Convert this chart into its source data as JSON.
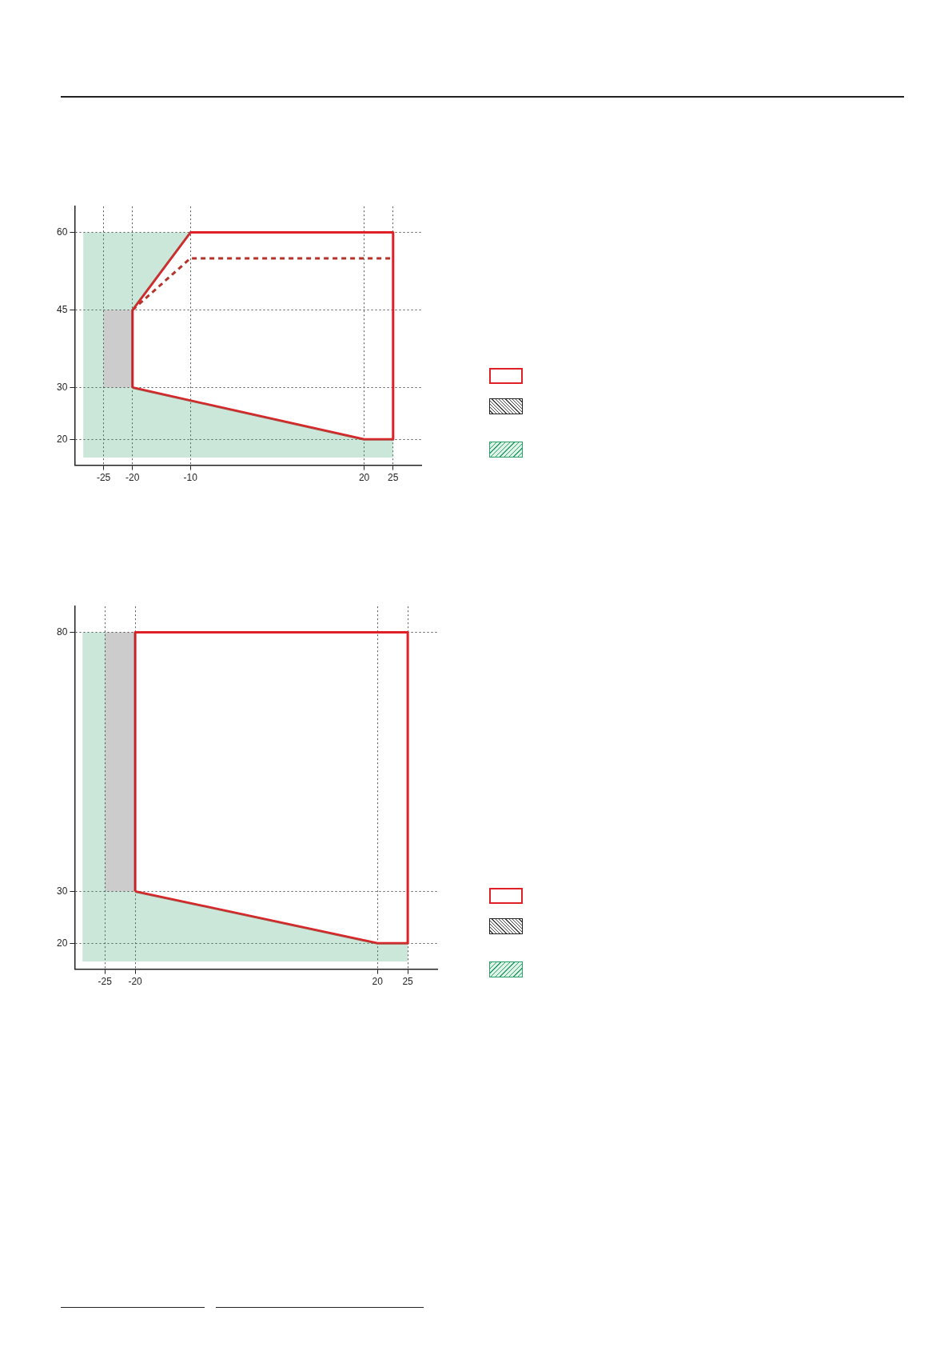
{
  "chart_data": [
    {
      "type": "line",
      "xlim": [
        -30,
        30
      ],
      "ylim": [
        15,
        65
      ],
      "xticks": [
        -25,
        -20,
        -10,
        20,
        25
      ],
      "yticks": [
        20,
        30,
        45,
        60
      ],
      "grid": true,
      "marker": "none",
      "series": [
        {
          "type": "area",
          "color": "#2e9e6a",
          "x": [
            -28.5,
            -28.5,
            -10,
            -20,
            -25,
            -25,
            -20,
            20,
            25,
            25,
            -28.5
          ],
          "values": [
            16.5,
            60,
            60,
            45,
            45,
            30,
            30,
            20,
            20,
            16.5,
            16.5
          ]
        },
        {
          "type": "area",
          "color": "#333333",
          "x": [
            -25,
            -25,
            -20,
            -20,
            -25
          ],
          "values": [
            30,
            45,
            45,
            30,
            30
          ]
        },
        {
          "type": "line",
          "color": "#e02027",
          "x": [
            -20,
            -20,
            -10,
            25,
            25
          ],
          "values": [
            30,
            45,
            60,
            60,
            20
          ]
        },
        {
          "type": "line",
          "color": "#e02027",
          "x": [
            -20,
            20,
            25
          ],
          "values": [
            30,
            20,
            20
          ]
        },
        {
          "type": "line",
          "color": "#b5332b",
          "line_style": "dashed",
          "x": [
            -20,
            -10,
            25
          ],
          "values": [
            45,
            55,
            55
          ]
        }
      ]
    },
    {
      "type": "line",
      "xlim": [
        -30,
        30
      ],
      "ylim": [
        15,
        85
      ],
      "xticks": [
        -25,
        -20,
        20,
        25
      ],
      "yticks": [
        20,
        30,
        80
      ],
      "grid": true,
      "marker": "none",
      "series": [
        {
          "type": "area",
          "color": "#2e9e6a",
          "x": [
            -28.7,
            -28.7,
            -25,
            -25,
            -20,
            20,
            25,
            25,
            -28.7
          ],
          "values": [
            16.5,
            80,
            80,
            30,
            30,
            20,
            20,
            16.5,
            16.5
          ]
        },
        {
          "type": "area",
          "color": "#333333",
          "x": [
            -25,
            -25,
            -20,
            -20,
            -25
          ],
          "values": [
            30,
            80,
            80,
            30,
            30
          ]
        },
        {
          "type": "line",
          "color": "#e02027",
          "x": [
            -20,
            -20,
            25,
            25
          ],
          "values": [
            30,
            80,
            80,
            20
          ]
        },
        {
          "type": "line",
          "color": "#e02027",
          "x": [
            -20,
            20,
            25
          ],
          "values": [
            30,
            20,
            20
          ]
        }
      ]
    }
  ]
}
